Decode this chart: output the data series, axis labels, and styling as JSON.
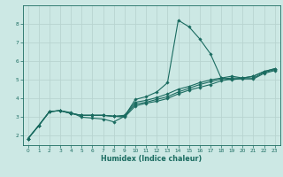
{
  "xlabel": "Humidex (Indice chaleur)",
  "bg_color": "#cce8e4",
  "grid_color": "#b8d4d0",
  "line_color": "#1a6b60",
  "spine_color": "#1a6b60",
  "xlim": [
    -0.5,
    23.5
  ],
  "ylim": [
    1.5,
    9.0
  ],
  "yticks": [
    2,
    3,
    4,
    5,
    6,
    7,
    8
  ],
  "xticks": [
    0,
    1,
    2,
    3,
    4,
    5,
    6,
    7,
    8,
    9,
    10,
    11,
    12,
    13,
    14,
    15,
    16,
    17,
    18,
    19,
    20,
    21,
    22,
    23
  ],
  "line1_x": [
    0,
    1,
    2,
    3,
    4,
    5,
    6,
    7,
    8,
    9,
    10,
    11,
    12,
    13,
    14,
    15,
    16,
    17,
    18,
    19,
    20,
    21,
    22,
    23
  ],
  "line1_y": [
    1.85,
    2.55,
    3.3,
    3.35,
    3.25,
    3.0,
    2.95,
    2.9,
    2.75,
    3.05,
    3.95,
    4.1,
    4.35,
    4.85,
    8.2,
    7.85,
    7.2,
    6.4,
    5.1,
    5.0,
    5.1,
    5.2,
    5.45,
    5.6
  ],
  "line2_x": [
    0,
    1,
    2,
    3,
    4,
    5,
    6,
    7,
    8,
    9,
    10,
    11,
    12,
    13,
    14,
    15,
    16,
    17,
    18,
    19,
    20,
    21,
    22,
    23
  ],
  "line2_y": [
    1.85,
    2.55,
    3.3,
    3.35,
    3.2,
    3.1,
    3.1,
    3.1,
    3.05,
    3.1,
    3.8,
    3.9,
    4.05,
    4.25,
    4.5,
    4.65,
    4.85,
    5.0,
    5.1,
    5.2,
    5.1,
    5.2,
    5.45,
    5.6
  ],
  "line3_x": [
    0,
    1,
    2,
    3,
    4,
    5,
    6,
    7,
    8,
    9,
    10,
    11,
    12,
    13,
    14,
    15,
    16,
    17,
    18,
    19,
    20,
    21,
    22,
    23
  ],
  "line3_y": [
    1.85,
    2.55,
    3.3,
    3.35,
    3.2,
    3.1,
    3.1,
    3.1,
    3.05,
    3.05,
    3.7,
    3.8,
    3.95,
    4.1,
    4.35,
    4.55,
    4.75,
    4.9,
    5.05,
    5.1,
    5.1,
    5.1,
    5.4,
    5.55
  ],
  "line4_x": [
    0,
    1,
    2,
    3,
    4,
    5,
    6,
    7,
    8,
    9,
    10,
    11,
    12,
    13,
    14,
    15,
    16,
    17,
    18,
    19,
    20,
    21,
    22,
    23
  ],
  "line4_y": [
    1.85,
    2.55,
    3.3,
    3.35,
    3.2,
    3.1,
    3.1,
    3.1,
    3.05,
    3.0,
    3.6,
    3.75,
    3.85,
    4.0,
    4.25,
    4.45,
    4.6,
    4.75,
    4.95,
    5.05,
    5.05,
    5.05,
    5.35,
    5.5
  ],
  "tick_fontsize": 4.2,
  "xlabel_fontsize": 5.8,
  "lw": 0.8,
  "ms": 1.8
}
